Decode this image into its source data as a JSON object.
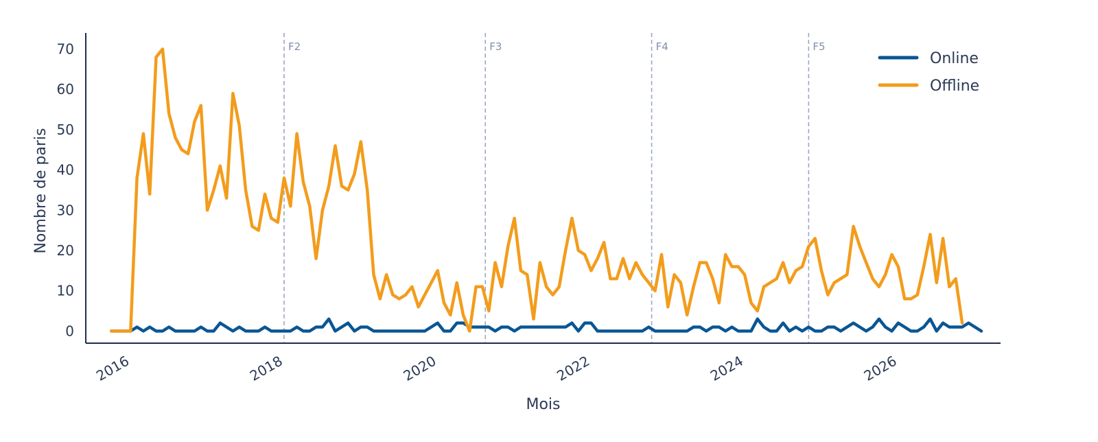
{
  "chart_data": {
    "type": "line",
    "title": "",
    "xlabel": "Mois",
    "ylabel": "Nombre de paris",
    "xlim": [
      "2015-08-01",
      "2027-07-01"
    ],
    "ylim": [
      -3,
      74
    ],
    "x_ticks": [
      "2016",
      "2018",
      "2020",
      "2022",
      "2024",
      "2026"
    ],
    "y_ticks": [
      0,
      10,
      20,
      30,
      40,
      50,
      60,
      70
    ],
    "grid": false,
    "legend_position": "top-right",
    "markers": [
      {
        "label": "F2",
        "x": "2018-03-01"
      },
      {
        "label": "F3",
        "x": "2020-10-15"
      },
      {
        "label": "F4",
        "x": "2022-12-15"
      },
      {
        "label": "F5",
        "x": "2025-01-01"
      }
    ],
    "x_start": "2015-12-01",
    "x_frequency": "monthly",
    "series": [
      {
        "name": "Online",
        "color": "#0a5694",
        "values": [
          0,
          0,
          0,
          0,
          1,
          0,
          1,
          0,
          0,
          1,
          0,
          0,
          0,
          0,
          1,
          0,
          0,
          2,
          1,
          0,
          1,
          0,
          0,
          0,
          1,
          0,
          0,
          0,
          0,
          1,
          0,
          0,
          1,
          1,
          3,
          0,
          1,
          2,
          0,
          1,
          1,
          0,
          0,
          0,
          0,
          0,
          0,
          0,
          0,
          0,
          1,
          2,
          0,
          0,
          2,
          2,
          1,
          1,
          1,
          1,
          0,
          1,
          1,
          0,
          1,
          1,
          1,
          1,
          1,
          1,
          1,
          1,
          2,
          0,
          2,
          2,
          0,
          0,
          0,
          0,
          0,
          0,
          0,
          0,
          1,
          0,
          0,
          0,
          0,
          0,
          0,
          1,
          1,
          0,
          1,
          1,
          0,
          1,
          0,
          0,
          0,
          3,
          1,
          0,
          0,
          2,
          0,
          1,
          0,
          1,
          0,
          0,
          1,
          1,
          0,
          1,
          2,
          1,
          0,
          1,
          3,
          1,
          0,
          2,
          1,
          0,
          0,
          1,
          3,
          0,
          2,
          1,
          1,
          1,
          2,
          1,
          0
        ]
      },
      {
        "name": "Offline",
        "color": "#f39c1c",
        "values": [
          0,
          0,
          0,
          0,
          38,
          49,
          34,
          68,
          70,
          54,
          48,
          45,
          44,
          52,
          56,
          30,
          35,
          41,
          33,
          59,
          51,
          35,
          26,
          25,
          34,
          28,
          27,
          38,
          31,
          49,
          37,
          31,
          18,
          30,
          36,
          46,
          36,
          35,
          39,
          47,
          35,
          14,
          8,
          14,
          9,
          8,
          9,
          11,
          6,
          9,
          12,
          15,
          7,
          4,
          12,
          4,
          0,
          11,
          11,
          5,
          17,
          11,
          21,
          28,
          15,
          14,
          3,
          17,
          11,
          9,
          11,
          20,
          28,
          20,
          19,
          15,
          18,
          22,
          13,
          13,
          18,
          13,
          17,
          14,
          12,
          10,
          19,
          6,
          14,
          12,
          4,
          11,
          17,
          17,
          13,
          7,
          19,
          16,
          16,
          14,
          7,
          5,
          11,
          12,
          13,
          17,
          12,
          15,
          16,
          21,
          23,
          15,
          9,
          12,
          13,
          14,
          26,
          21,
          17,
          13,
          11,
          14,
          19,
          16,
          8,
          8,
          9,
          16,
          24,
          12,
          23,
          11,
          13,
          2
        ]
      }
    ]
  }
}
